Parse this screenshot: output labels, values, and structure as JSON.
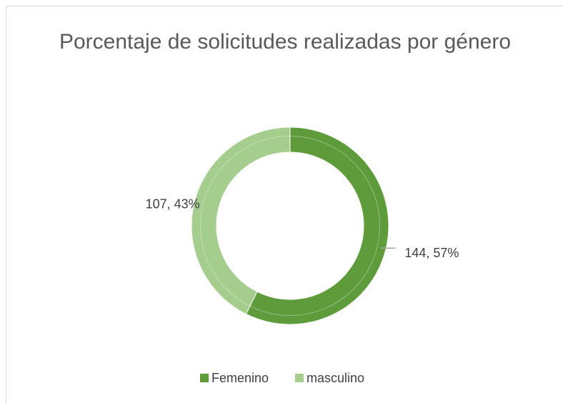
{
  "chart_data": {
    "type": "donut",
    "title": "Porcentaje de solicitudes realizadas por género",
    "categories": [
      "Femenino",
      "masculino"
    ],
    "values": [
      144,
      107
    ],
    "value_labels": [
      "144, 57%",
      "107, 43%"
    ],
    "colors": [
      "#5e9b3b",
      "#a5cd8d"
    ],
    "legend": "bottom"
  }
}
